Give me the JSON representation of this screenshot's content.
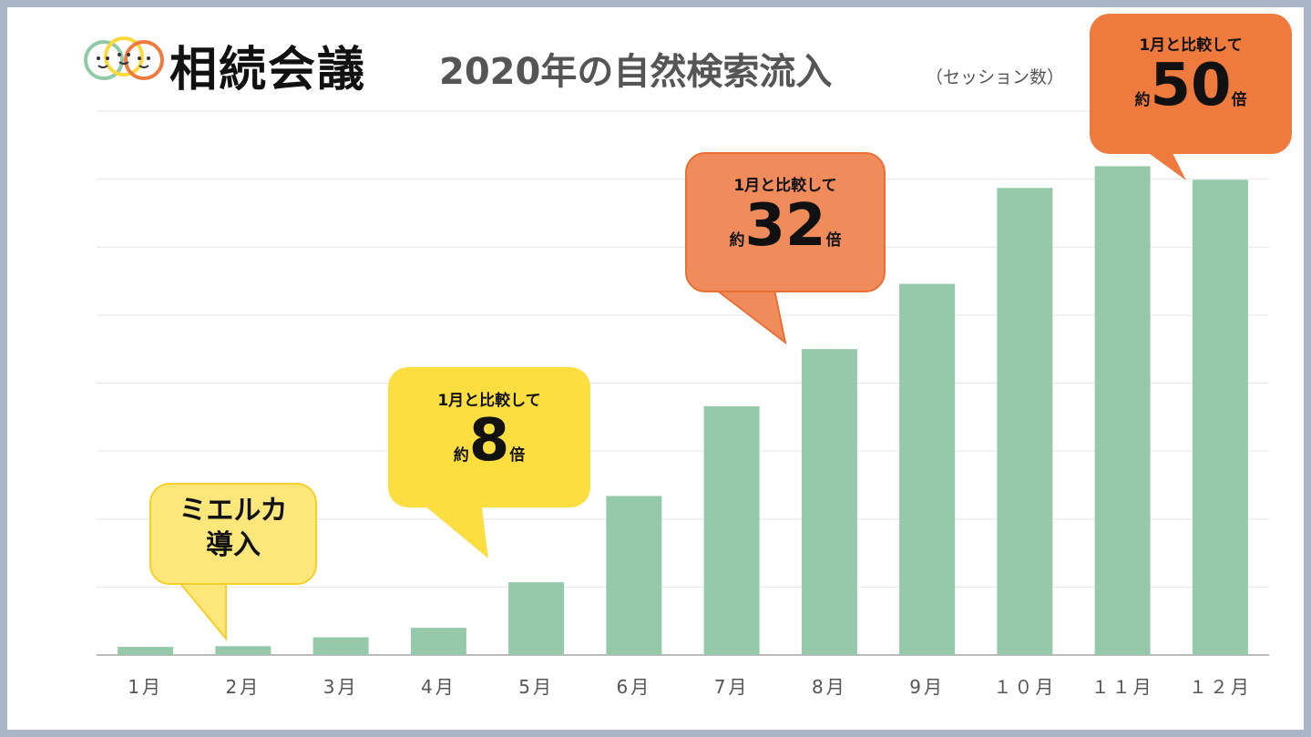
{
  "logo": {
    "text": "相続会議"
  },
  "title": {
    "main": "2020年の自然検索流入",
    "sub": "（セッション数）"
  },
  "callouts": {
    "intro": {
      "line1": "ミエルカ",
      "line2": "導入"
    },
    "c8": {
      "top": "1月と比較して",
      "prefix": "約",
      "big": "8",
      "suffix": "倍"
    },
    "c32": {
      "top": "1月と比較して",
      "prefix": "約",
      "big": "32",
      "suffix": "倍"
    },
    "c50": {
      "top": "1月と比較して",
      "prefix": "約",
      "big": "50",
      "suffix": "倍"
    }
  },
  "colors": {
    "bar": "#96c9aa",
    "callout_light_yellow": "#fee77a",
    "callout_yellow": "#fdde40",
    "callout_light_orange": "#f08c5c",
    "callout_orange": "#ef7a3e",
    "grid": "#e6e6e6",
    "axis": "#bbbbbb",
    "tick_label": "#555555"
  },
  "chart_data": {
    "type": "bar",
    "categories": [
      "1月",
      "2月",
      "3月",
      "4月",
      "5月",
      "6月",
      "7月",
      "8月",
      "9月",
      "１０月",
      "１１月",
      "１２月"
    ],
    "values": [
      1.2,
      1.3,
      2.6,
      4.0,
      10.7,
      23.4,
      36.6,
      45.0,
      54.6,
      68.7,
      71.9,
      69.9
    ],
    "ylim": [
      0,
      80
    ],
    "grid": true,
    "title": "2020年の自然検索流入",
    "xlabel": "",
    "ylabel": ""
  }
}
